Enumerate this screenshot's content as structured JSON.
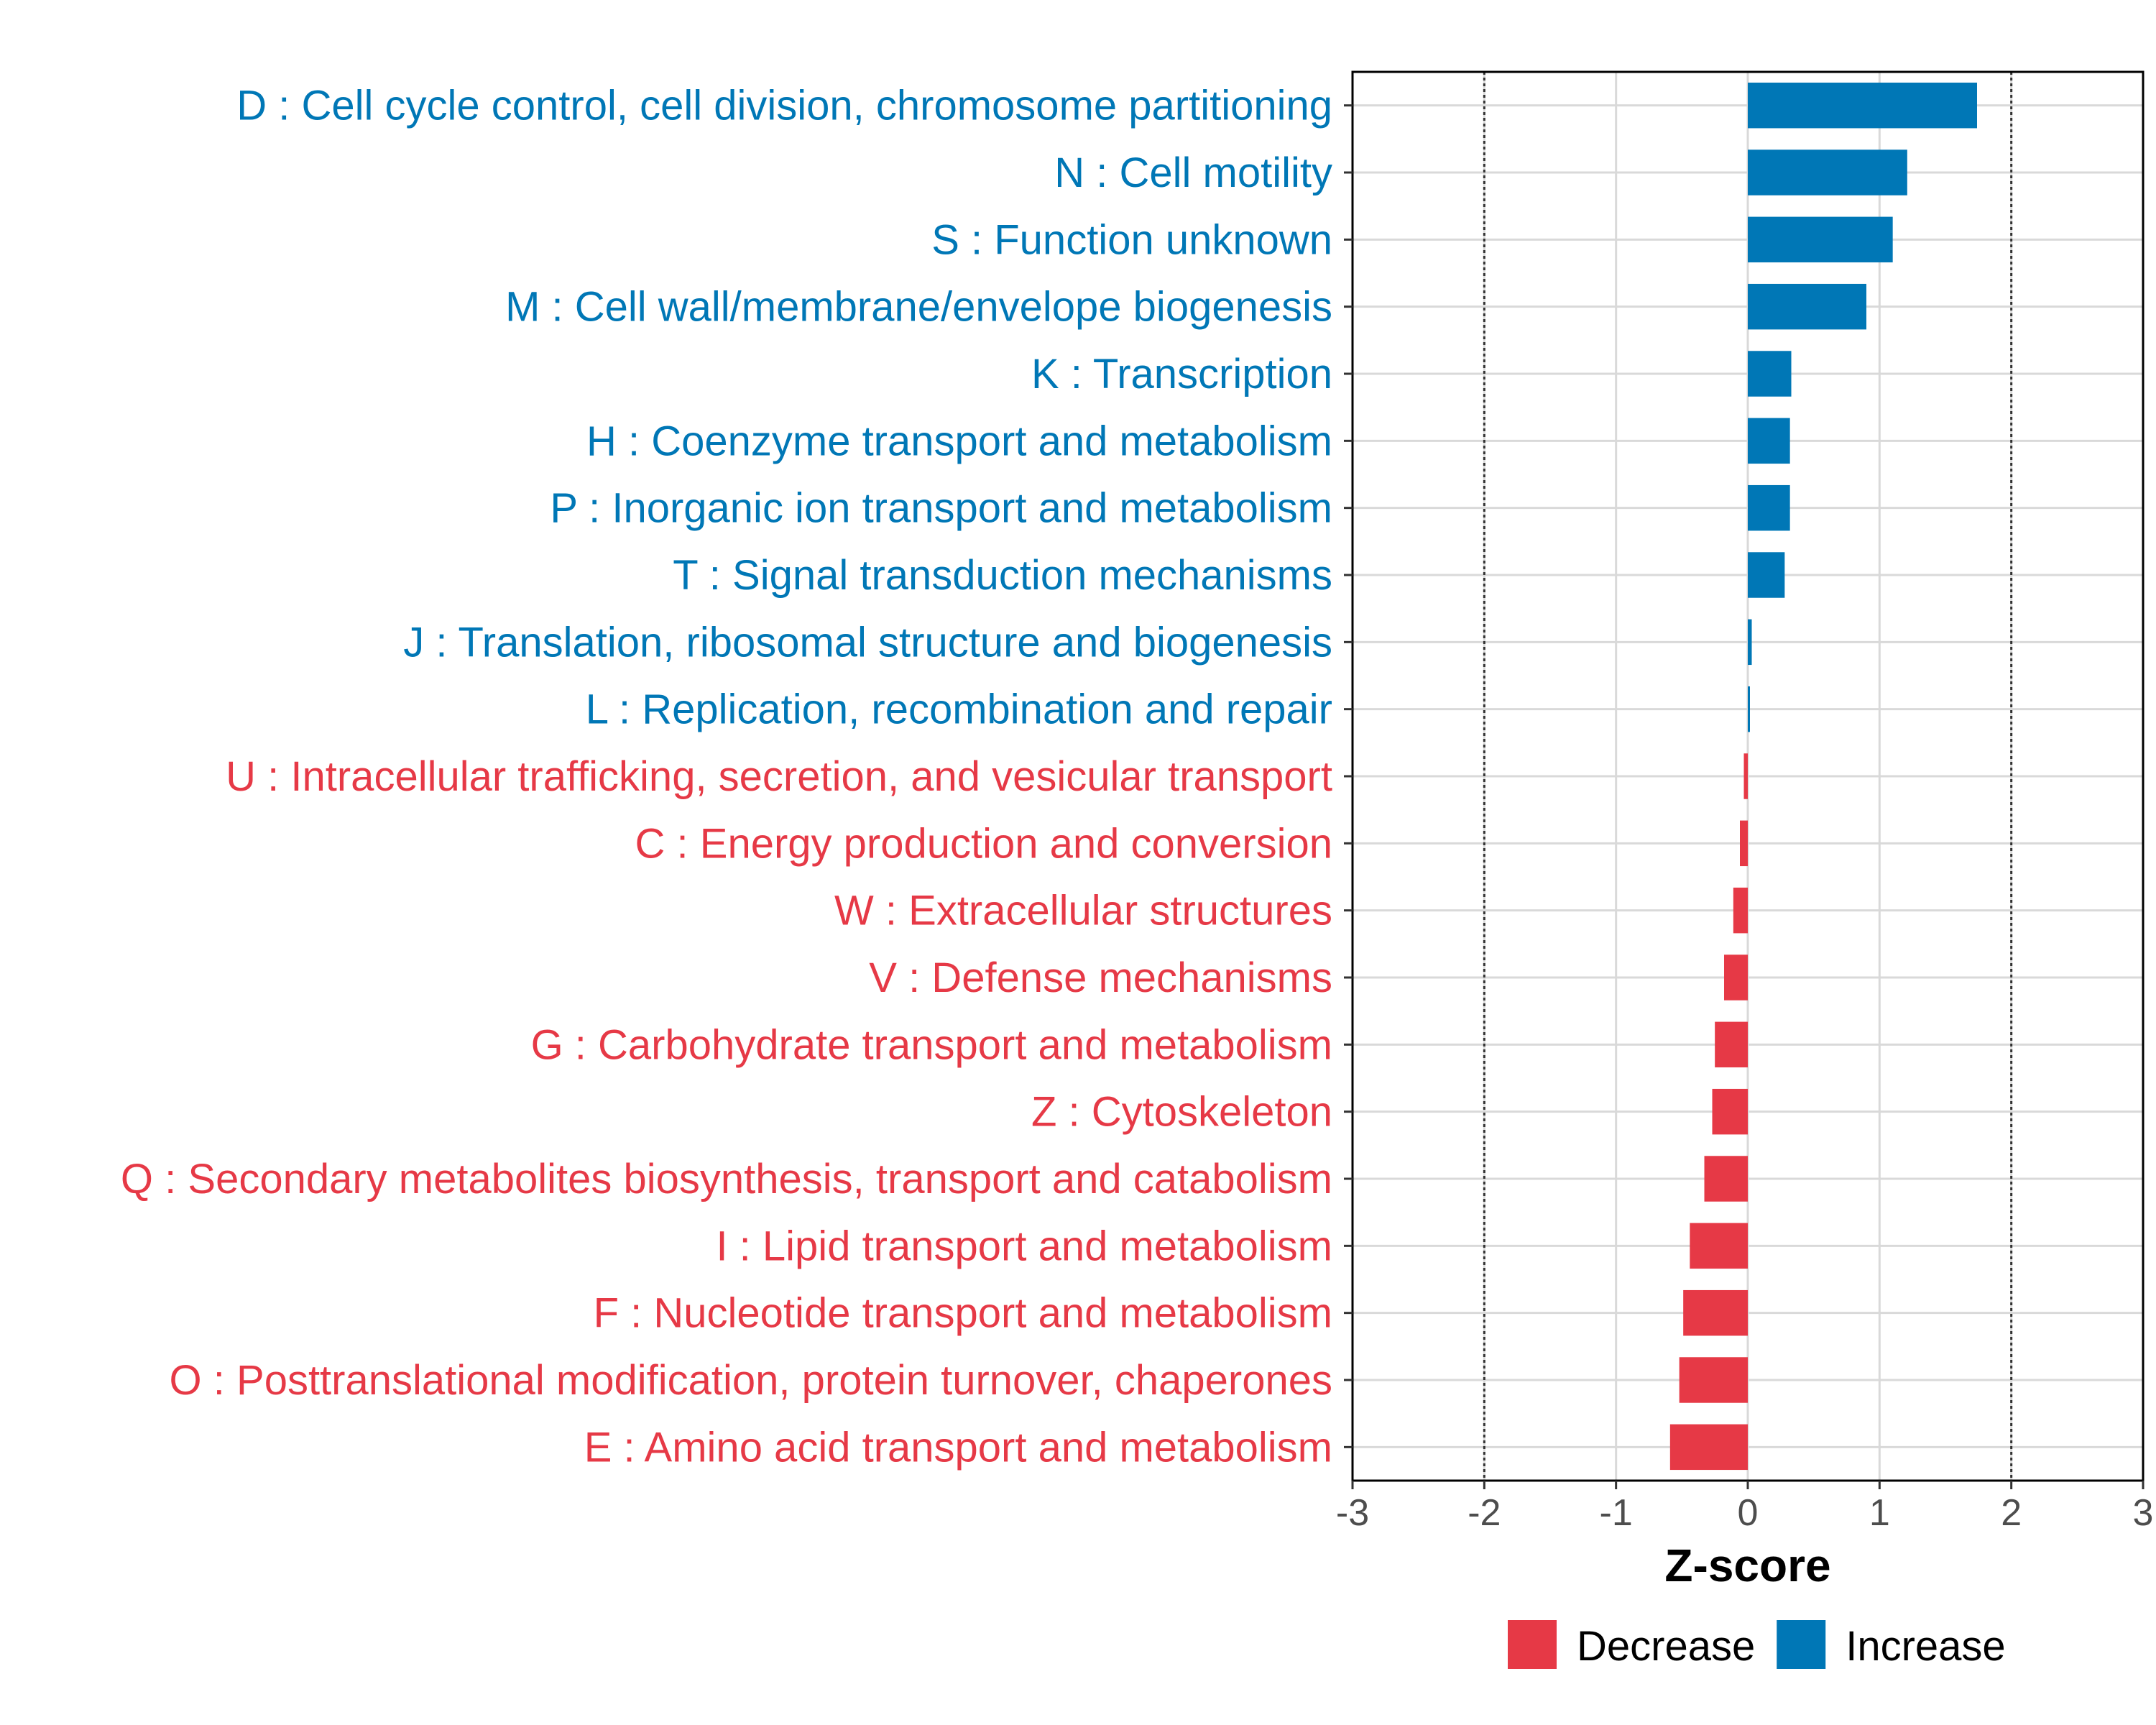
{
  "chart_data": {
    "type": "bar",
    "orientation": "horizontal",
    "title": "",
    "xlabel": "Z-score",
    "ylabel": "",
    "xlim": [
      -3,
      3
    ],
    "x_ticks": [
      -3,
      -2,
      -1,
      0,
      1,
      2,
      3
    ],
    "x_tick_labels": [
      "-3",
      "-2",
      "-1",
      "0",
      "1",
      "2",
      "3"
    ],
    "reference_lines": [
      -2,
      2
    ],
    "grid": true,
    "legend_position": "bottom",
    "legend": [
      {
        "name": "Decrease",
        "color": "#E63946"
      },
      {
        "name": "Increase",
        "color": "#0077B6"
      }
    ],
    "categories": [
      "D : Cell cycle control, cell division, chromosome partitioning",
      "N : Cell motility",
      "S : Function unknown",
      "M : Cell wall/membrane/envelope biogenesis",
      "K : Transcription",
      "H : Coenzyme transport and metabolism",
      "P : Inorganic ion transport and metabolism",
      "T : Signal transduction mechanisms",
      "J : Translation, ribosomal structure and biogenesis",
      "L : Replication, recombination and repair",
      "U : Intracellular trafficking, secretion, and vesicular transport",
      "C : Energy production and conversion",
      "W : Extracellular structures",
      "V : Defense mechanisms",
      "G : Carbohydrate transport and metabolism",
      "Z : Cytoskeleton",
      "Q : Secondary metabolites biosynthesis, transport and catabolism",
      "I : Lipid transport and metabolism",
      "F : Nucleotide transport and metabolism",
      "O : Posttranslational modification, protein turnover, chaperones",
      "E : Amino acid transport and metabolism"
    ],
    "values": [
      1.74,
      1.21,
      1.1,
      0.9,
      0.33,
      0.32,
      0.32,
      0.28,
      0.03,
      0.01,
      -0.03,
      -0.06,
      -0.11,
      -0.18,
      -0.25,
      -0.27,
      -0.33,
      -0.44,
      -0.49,
      -0.52,
      -0.59
    ],
    "series_assignment": [
      "Increase",
      "Increase",
      "Increase",
      "Increase",
      "Increase",
      "Increase",
      "Increase",
      "Increase",
      "Increase",
      "Increase",
      "Decrease",
      "Decrease",
      "Decrease",
      "Decrease",
      "Decrease",
      "Decrease",
      "Decrease",
      "Decrease",
      "Decrease",
      "Decrease",
      "Decrease"
    ]
  }
}
